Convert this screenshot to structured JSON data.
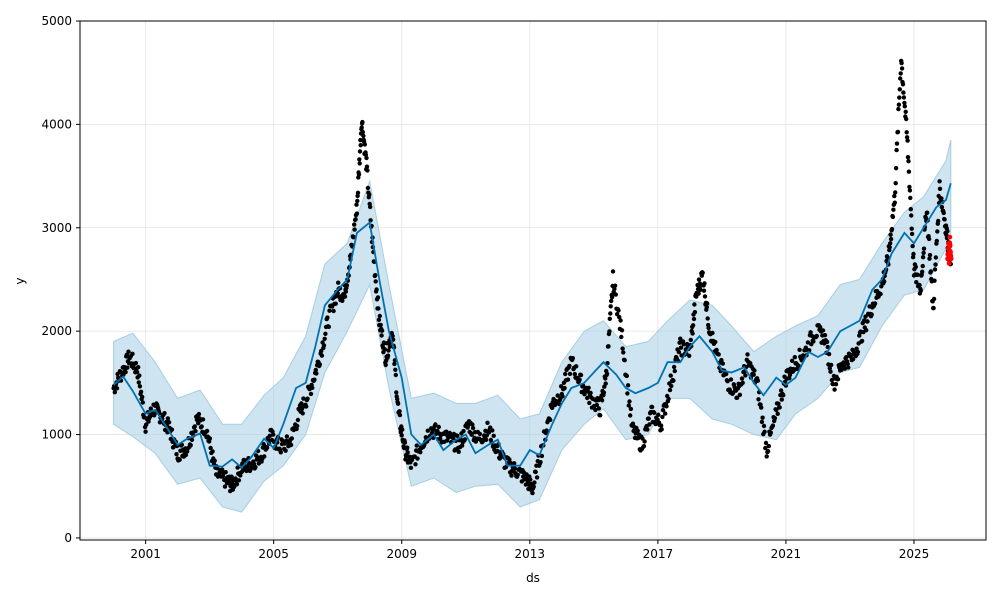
{
  "chart_data": {
    "type": "line",
    "title": "",
    "xlabel": "ds",
    "ylabel": "y",
    "xlim": [
      1998.95,
      2027.25
    ],
    "ylim": [
      -20,
      5000
    ],
    "x_ticks": [
      2001,
      2005,
      2009,
      2013,
      2017,
      2021,
      2025
    ],
    "y_ticks": [
      0,
      1000,
      2000,
      3000,
      4000,
      5000
    ],
    "grid": true,
    "legend": "none",
    "series": [
      {
        "role": "forecast",
        "color": "#0072B2",
        "x": [
          2000.0,
          2000.3,
          2000.6,
          2001.0,
          2001.3,
          2001.7,
          2002.0,
          2002.3,
          2002.7,
          2003.0,
          2003.4,
          2003.7,
          2004.0,
          2004.3,
          2004.7,
          2005.0,
          2005.3,
          2005.7,
          2006.0,
          2006.3,
          2006.6,
          2007.0,
          2007.3,
          2007.6,
          2008.0,
          2008.3,
          2008.6,
          2009.0,
          2009.3,
          2009.6,
          2010.0,
          2010.3,
          2010.7,
          2011.0,
          2011.3,
          2011.7,
          2012.0,
          2012.3,
          2012.7,
          2013.0,
          2013.3,
          2013.7,
          2014.0,
          2014.3,
          2014.7,
          2015.0,
          2015.3,
          2015.7,
          2016.0,
          2016.3,
          2016.7,
          2017.0,
          2017.3,
          2017.7,
          2018.0,
          2018.3,
          2018.7,
          2019.0,
          2019.3,
          2019.7,
          2020.0,
          2020.3,
          2020.7,
          2021.0,
          2021.3,
          2021.7,
          2022.0,
          2022.3,
          2022.7,
          2023.0,
          2023.3,
          2023.7,
          2024.0,
          2024.3,
          2024.7,
          2025.0,
          2025.3,
          2025.7,
          2026.0,
          2026.15
        ],
        "y": [
          1480,
          1560,
          1420,
          1200,
          1240,
          1050,
          900,
          960,
          1010,
          700,
          690,
          760,
          680,
          780,
          960,
          870,
          1100,
          1450,
          1500,
          1850,
          2250,
          2400,
          2500,
          2950,
          3050,
          2500,
          2000,
          1550,
          1000,
          900,
          1000,
          850,
          950,
          1000,
          820,
          900,
          950,
          700,
          700,
          850,
          800,
          1100,
          1300,
          1450,
          1500,
          1600,
          1700,
          1580,
          1450,
          1400,
          1450,
          1500,
          1700,
          1700,
          1850,
          1950,
          1800,
          1620,
          1600,
          1650,
          1500,
          1380,
          1550,
          1480,
          1550,
          1800,
          1750,
          1800,
          2000,
          2050,
          2100,
          2400,
          2500,
          2750,
          2950,
          2850,
          3000,
          3200,
          3270,
          3430
        ]
      },
      {
        "role": "uncertainty",
        "color": "#A6CEE3",
        "x": [
          2000.0,
          2000.6,
          2001.3,
          2002.0,
          2002.7,
          2003.4,
          2004.0,
          2004.7,
          2005.3,
          2006.0,
          2006.6,
          2007.3,
          2008.0,
          2008.6,
          2009.3,
          2010.0,
          2010.7,
          2011.3,
          2012.0,
          2012.7,
          2013.3,
          2014.0,
          2014.7,
          2015.3,
          2016.0,
          2016.7,
          2017.3,
          2018.0,
          2018.7,
          2019.3,
          2020.0,
          2020.7,
          2021.3,
          2022.0,
          2022.7,
          2023.3,
          2024.0,
          2024.7,
          2025.3,
          2026.0,
          2026.15
        ],
        "lower": [
          1100,
          980,
          820,
          520,
          580,
          300,
          250,
          550,
          700,
          1000,
          1600,
          2000,
          2450,
          1450,
          500,
          580,
          440,
          500,
          520,
          300,
          370,
          850,
          1100,
          1250,
          950,
          1000,
          1350,
          1350,
          1150,
          1100,
          1000,
          950,
          1200,
          1350,
          1600,
          1650,
          2050,
          2350,
          2400,
          2800,
          2950
        ],
        "upper": [
          1900,
          1980,
          1700,
          1350,
          1430,
          1100,
          1100,
          1380,
          1550,
          1950,
          2650,
          2850,
          3450,
          2450,
          1350,
          1400,
          1300,
          1300,
          1380,
          1150,
          1200,
          1700,
          2000,
          2100,
          1850,
          1900,
          2100,
          2300,
          2250,
          2050,
          1800,
          1950,
          2050,
          2150,
          2450,
          2500,
          2850,
          3150,
          3300,
          3650,
          3850
        ]
      },
      {
        "role": "observed",
        "color": "#000000",
        "x": [
          2000.0,
          2000.25,
          2000.5,
          2000.75,
          2001.0,
          2001.25,
          2001.5,
          2001.75,
          2002.0,
          2002.3,
          2002.6,
          2002.9,
          2003.2,
          2003.5,
          2003.7,
          2004.0,
          2004.3,
          2004.6,
          2004.9,
          2005.2,
          2005.5,
          2005.8,
          2006.1,
          2006.4,
          2006.7,
          2007.0,
          2007.2,
          2007.4,
          2007.6,
          2007.75,
          2007.9,
          2008.1,
          2008.3,
          2008.5,
          2008.7,
          2008.9,
          2009.1,
          2009.3,
          2009.6,
          2009.9,
          2010.2,
          2010.5,
          2010.8,
          2011.1,
          2011.4,
          2011.7,
          2012.0,
          2012.3,
          2012.6,
          2012.9,
          2013.1,
          2013.4,
          2013.7,
          2014.0,
          2014.3,
          2014.6,
          2014.9,
          2015.2,
          2015.4,
          2015.6,
          2015.9,
          2016.2,
          2016.5,
          2016.8,
          2017.1,
          2017.4,
          2017.7,
          2018.0,
          2018.2,
          2018.4,
          2018.6,
          2018.9,
          2019.2,
          2019.5,
          2019.8,
          2020.1,
          2020.4,
          2020.7,
          2021.0,
          2021.3,
          2021.6,
          2021.9,
          2022.2,
          2022.5,
          2022.8,
          2023.1,
          2023.4,
          2023.7,
          2024.0,
          2024.2,
          2024.4,
          2024.6,
          2024.8,
          2025.0,
          2025.2,
          2025.4,
          2025.6,
          2025.8,
          2026.0,
          2026.15
        ],
        "y": [
          1450,
          1600,
          1750,
          1620,
          1100,
          1250,
          1180,
          1050,
          820,
          880,
          1150,
          1050,
          620,
          560,
          510,
          680,
          720,
          800,
          980,
          880,
          920,
          1200,
          1400,
          1700,
          2100,
          2400,
          2350,
          2700,
          3200,
          4050,
          3600,
          2800,
          2100,
          1750,
          2000,
          1200,
          850,
          700,
          900,
          1050,
          1000,
          950,
          900,
          1100,
          950,
          1050,
          850,
          700,
          650,
          560,
          480,
          900,
          1300,
          1400,
          1700,
          1500,
          1350,
          1250,
          1600,
          2500,
          1900,
          1050,
          900,
          1200,
          1100,
          1500,
          1850,
          1800,
          2350,
          2550,
          2050,
          1700,
          1500,
          1400,
          1700,
          1500,
          850,
          1200,
          1550,
          1700,
          1800,
          2000,
          1950,
          1500,
          1700,
          1750,
          2000,
          2250,
          2450,
          2700,
          3300,
          4650,
          3800,
          2600,
          2400,
          3200,
          2200,
          3400,
          3000,
          2650
        ],
        "title": ""
      },
      {
        "role": "holdout",
        "color": "#FF0000",
        "x": [
          2026.05,
          2026.08,
          2026.1,
          2026.12,
          2026.14,
          2026.16
        ],
        "y": [
          2700,
          2850,
          2650,
          2900,
          2750,
          2700
        ]
      }
    ]
  }
}
